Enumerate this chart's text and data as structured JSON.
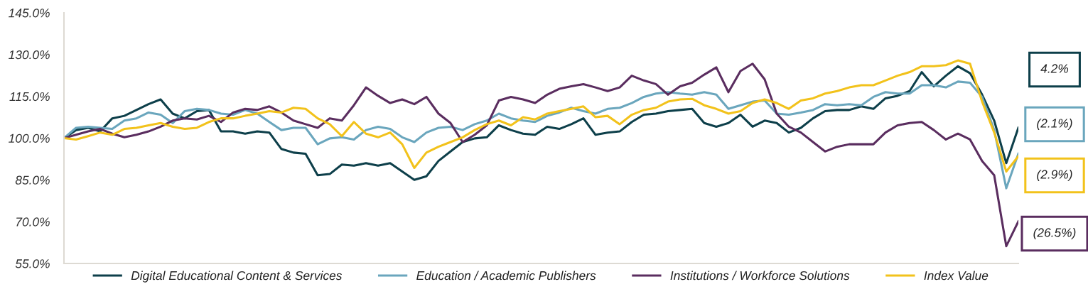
{
  "chart_data": {
    "type": "line",
    "categories": [
      null,
      null,
      null,
      null,
      null,
      null,
      null,
      null,
      null,
      null,
      null,
      null,
      null,
      null,
      null,
      null,
      null,
      null,
      null,
      null,
      null,
      null,
      null,
      null,
      null,
      null,
      null,
      null,
      null,
      null,
      null,
      null,
      null,
      null,
      null,
      null,
      null,
      null,
      null,
      null,
      null,
      null,
      null,
      null,
      null,
      null,
      null,
      null,
      null,
      null,
      null,
      null,
      null,
      null,
      null,
      null,
      null,
      null,
      null,
      null,
      null,
      null,
      null,
      null,
      null,
      null,
      null,
      null,
      null,
      null,
      null,
      null,
      null,
      null,
      null,
      null,
      null,
      null,
      null,
      null
    ],
    "series": [
      {
        "name": "Digital Educational Content & Services",
        "color": "#0d3f4a",
        "values": [
          99.9,
          102.9,
          103.7,
          102.4,
          107.1,
          108,
          110.1,
          112.2,
          113.9,
          108.8,
          107.1,
          109.7,
          110.1,
          102.4,
          102.4,
          101.6,
          102.4,
          102,
          96.1,
          94.8,
          94.4,
          86.7,
          87.1,
          90.5,
          90.1,
          91,
          90.1,
          91,
          88,
          85,
          86.3,
          91.8,
          95.2,
          98.6,
          99.9,
          100.3,
          104.6,
          102.9,
          101.6,
          101.2,
          104.1,
          103.3,
          105,
          107.1,
          101.2,
          102,
          102.4,
          105.8,
          108.4,
          108.8,
          109.7,
          110.1,
          110.5,
          105.4,
          104.1,
          105.4,
          108.4,
          104.1,
          106.3,
          105.4,
          102,
          103.7,
          107.1,
          109.7,
          110.1,
          110.1,
          111.4,
          110.5,
          114.3,
          115.2,
          116.9,
          123.7,
          118.6,
          122.4,
          125.8,
          123.3,
          115.6,
          106.3,
          91,
          103.7
        ]
      },
      {
        "name": "Education / Academic Publishers",
        "color": "#6aa6bd",
        "values": [
          100,
          103.7,
          104.1,
          103.7,
          103.3,
          106.3,
          107.1,
          109.2,
          108.4,
          105.4,
          109.7,
          110.5,
          110.1,
          108.8,
          108.4,
          110.1,
          108.8,
          105.8,
          102.9,
          103.7,
          103.7,
          97.8,
          99.9,
          100.3,
          99.5,
          102.9,
          104.1,
          103.3,
          100.3,
          98.6,
          102,
          103.7,
          104.1,
          102.9,
          105,
          106.3,
          108.8,
          107.1,
          106.3,
          105.8,
          108,
          109.2,
          110.9,
          109.7,
          108.8,
          110.5,
          110.9,
          112.6,
          114.8,
          116,
          116.5,
          116,
          115.6,
          116.5,
          115.6,
          110.5,
          111.8,
          113.1,
          113.5,
          108.8,
          108.4,
          109.2,
          110.1,
          112.2,
          111.8,
          112.2,
          111.8,
          114.8,
          116.5,
          116,
          116,
          119,
          119,
          118.2,
          120.3,
          119.9,
          114.8,
          102.9,
          82,
          94.4
        ]
      },
      {
        "name": "Institutions / Workforce Solutions",
        "color": "#5a2d5f",
        "values": [
          100,
          101.2,
          102.4,
          103.3,
          101.6,
          100.3,
          101.2,
          102.4,
          104.1,
          106.3,
          107.1,
          106.7,
          108,
          105.8,
          109.2,
          110.5,
          110.1,
          111.4,
          109.2,
          106.3,
          105,
          103.7,
          107.1,
          106.3,
          111.8,
          118.2,
          115.2,
          112.6,
          113.9,
          112.2,
          114.8,
          108.8,
          105.4,
          98.6,
          101.2,
          104.6,
          113.5,
          114.8,
          113.9,
          112.6,
          115.6,
          117.7,
          118.6,
          119.4,
          118.2,
          116.9,
          118.2,
          122.4,
          120.7,
          119.4,
          115.6,
          118.6,
          119.9,
          122.8,
          125.4,
          116.5,
          124.1,
          126.7,
          121.1,
          108.8,
          104.1,
          102,
          98.6,
          95.2,
          96.9,
          97.8,
          97.8,
          97.8,
          102,
          104.6,
          105.4,
          105.8,
          102.9,
          99.5,
          101.6,
          99.5,
          91.8,
          86.7,
          61.2,
          70.1
        ]
      },
      {
        "name": "Index Value",
        "color": "#f2c21b",
        "values": [
          100,
          99.5,
          100.7,
          102,
          101.2,
          103.3,
          103.7,
          104.6,
          105.4,
          104.1,
          103.3,
          103.7,
          105.8,
          107.1,
          107.1,
          108,
          108.8,
          109.7,
          109.2,
          110.9,
          110.5,
          107.1,
          105,
          100.7,
          105.8,
          101.6,
          100.3,
          102,
          97.8,
          89.3,
          94.8,
          96.9,
          98.6,
          100.3,
          102.9,
          105,
          106.3,
          104.6,
          107.5,
          106.7,
          108.8,
          109.7,
          110.5,
          111.4,
          107.5,
          108,
          105,
          108.4,
          110.1,
          110.9,
          113.1,
          113.9,
          114.1,
          111.8,
          110.5,
          108.8,
          109.7,
          112.6,
          113.9,
          112.6,
          110.5,
          113.5,
          114.3,
          116,
          116.9,
          118.2,
          119,
          119,
          120.7,
          122.4,
          123.7,
          125.8,
          125.8,
          126.2,
          127.9,
          126.7,
          113.1,
          102,
          88,
          93.5
        ]
      }
    ],
    "ylim": [
      55,
      145
    ],
    "yticks": [
      {
        "value": 55,
        "label": "55.0%"
      },
      {
        "value": 70,
        "label": "70.0%"
      },
      {
        "value": 85,
        "label": "85.0%"
      },
      {
        "value": 100,
        "label": "100.0%"
      },
      {
        "value": 115,
        "label": "115.0%"
      },
      {
        "value": 130,
        "label": "130.0%"
      },
      {
        "value": 145,
        "label": "145.0%"
      }
    ],
    "annotations": [
      "4.2%",
      "(2.1%)",
      "(2.9%)",
      "(26.5%)"
    ],
    "legend": "bottom",
    "grid": false,
    "marker": "none",
    "line_style": "solid"
  }
}
